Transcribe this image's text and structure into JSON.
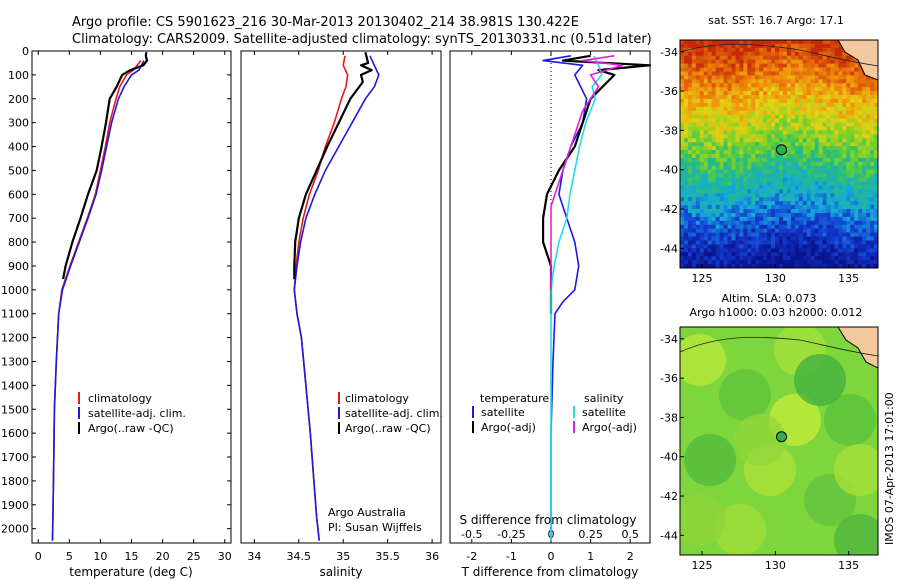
{
  "header": {
    "line1": "Argo profile: CS 5901623_216 30-Mar-2013 20130402_214 38.981S 130.422E",
    "line2": "Climatology: CARS2009. Satellite-adjusted climatology: synTS_20130331.nc (0.51d later)"
  },
  "side_label": "IMOS 07-Apr-2013 17:01:00",
  "chart_data": [
    {
      "type": "line",
      "id": "temperature",
      "xlabel": "temperature (deg C)",
      "ylabel": "",
      "xlim": [
        -1,
        31
      ],
      "ylim": [
        0,
        2060
      ],
      "xticks": [
        0,
        5,
        10,
        15,
        20,
        25,
        30
      ],
      "yticks": [
        0,
        100,
        200,
        300,
        400,
        500,
        600,
        700,
        800,
        900,
        1000,
        1100,
        1200,
        1300,
        1400,
        1500,
        1600,
        1700,
        1800,
        1900,
        2000
      ],
      "legend": [
        "climatology",
        "satellite-adj. clim.",
        "Argo(..raw -QC)"
      ],
      "series": [
        {
          "name": "climatology",
          "color": "#e41a1c",
          "x": [
            16.5,
            15.3,
            14.2,
            13.1,
            12.5,
            11.5,
            10.8,
            10.0,
            9.2,
            7.9,
            6.5,
            5.1,
            3.8,
            3.3,
            2.9,
            2.6,
            2.5,
            2.4,
            2.3
          ],
          "y": [
            40,
            80,
            100,
            150,
            200,
            300,
            400,
            500,
            600,
            700,
            800,
            900,
            1000,
            1100,
            1300,
            1500,
            1700,
            1900,
            2050
          ]
        },
        {
          "name": "satellite-adj. clim.",
          "color": "#1a1adc",
          "x": [
            17.0,
            16.2,
            15.0,
            13.8,
            12.9,
            11.8,
            11.0,
            10.2,
            9.3,
            8.0,
            6.6,
            5.2,
            3.9,
            3.3,
            2.9,
            2.6,
            2.5,
            2.4,
            2.3
          ],
          "y": [
            40,
            80,
            100,
            150,
            200,
            300,
            400,
            500,
            600,
            700,
            800,
            900,
            1000,
            1100,
            1300,
            1500,
            1700,
            1900,
            2050
          ]
        },
        {
          "name": "Argo(..raw -QC)",
          "color": "#000000",
          "x": [
            17.4,
            17.3,
            17.5,
            16.9,
            14.8,
            13.5,
            12.6,
            11.5,
            10.9,
            10.2,
            9.4,
            8.0,
            6.8,
            5.5,
            4.4,
            4.0
          ],
          "y": [
            5,
            20,
            40,
            60,
            80,
            100,
            150,
            200,
            300,
            400,
            500,
            600,
            700,
            800,
            900,
            955
          ]
        }
      ]
    },
    {
      "type": "line",
      "id": "salinity",
      "xlabel": "salinity",
      "xlim": [
        33.85,
        36.1
      ],
      "ylim": [
        0,
        2060
      ],
      "xticks": [
        34,
        34.5,
        35,
        35.5,
        36
      ],
      "legend": [
        "climatology",
        "satellite-adj. clim.",
        "Argo(..raw -QC)"
      ],
      "annotation": [
        "Argo Australia",
        "PI: Susan Wijffels"
      ],
      "series": [
        {
          "name": "climatology",
          "color": "#e41a1c",
          "x": [
            35.02,
            35.0,
            35.05,
            35.03,
            34.98,
            34.9,
            34.8,
            34.72,
            34.62,
            34.55,
            34.5,
            34.47,
            34.45,
            34.48,
            34.53,
            34.58,
            34.63,
            34.67,
            34.7,
            34.73
          ],
          "y": [
            20,
            60,
            100,
            150,
            200,
            300,
            400,
            500,
            600,
            700,
            800,
            900,
            1000,
            1100,
            1200,
            1400,
            1600,
            1800,
            1950,
            2050
          ]
        },
        {
          "name": "satellite-adj. clim.",
          "color": "#1a1adc",
          "x": [
            35.3,
            35.35,
            35.4,
            35.35,
            35.25,
            35.1,
            34.95,
            34.8,
            34.68,
            34.58,
            34.52,
            34.48,
            34.45,
            34.48,
            34.53,
            34.58,
            34.63,
            34.67,
            34.7,
            34.73
          ],
          "y": [
            20,
            60,
            100,
            150,
            200,
            300,
            400,
            500,
            600,
            700,
            800,
            900,
            1000,
            1100,
            1200,
            1400,
            1600,
            1800,
            1950,
            2050
          ]
        },
        {
          "name": "Argo(..raw -QC)",
          "color": "#000000",
          "x": [
            35.25,
            35.28,
            35.2,
            35.32,
            35.2,
            35.22,
            35.08,
            34.95,
            34.82,
            34.7,
            34.58,
            34.5,
            34.46,
            34.45,
            34.45
          ],
          "y": [
            5,
            50,
            60,
            80,
            100,
            130,
            200,
            300,
            400,
            500,
            600,
            700,
            800,
            900,
            955
          ]
        }
      ]
    },
    {
      "type": "line",
      "id": "difference",
      "xlabel": "T difference from climatology",
      "xlabel2": "S difference from climatology",
      "xlim": [
        -2.55,
        2.5
      ],
      "ylim": [
        0,
        2060
      ],
      "xticks": [
        -2,
        -1,
        0,
        1,
        2
      ],
      "xticks2": [
        -0.5,
        -0.25,
        0,
        0.25,
        0.5
      ],
      "legend_titles": [
        "temperature",
        "salinity"
      ],
      "legend": [
        "satellite",
        "Argo(-adj)",
        "satellite",
        "Argo(-adj)"
      ],
      "series": [
        {
          "name": "temperature satellite",
          "color": "#1a1adc",
          "x": [
            0.5,
            -0.2,
            0.8,
            0.6,
            0.9,
            0.8,
            0.5,
            0.3,
            0.2,
            0.4,
            0.6,
            0.7,
            0.6,
            0.3,
            0.1,
            0.05,
            0.0,
            0.0
          ],
          "y": [
            20,
            40,
            60,
            100,
            200,
            300,
            400,
            500,
            600,
            700,
            800,
            900,
            1000,
            1050,
            1100,
            1300,
            1600,
            2050
          ]
        },
        {
          "name": "temperature Argo(-adj)",
          "color": "#000000",
          "x": [
            1.0,
            0.3,
            2.5,
            1.2,
            1.6,
            1.0,
            0.8,
            0.6,
            0.2,
            -0.1,
            -0.2,
            -0.2,
            0.0,
            0.0,
            0.0
          ],
          "y": [
            20,
            40,
            60,
            80,
            100,
            200,
            300,
            400,
            500,
            600,
            700,
            800,
            900,
            1000,
            1100
          ]
        },
        {
          "name": "salinity satellite",
          "color": "#22dde8",
          "x": [
            0.27,
            0.3,
            0.32,
            0.26,
            0.28,
            0.22,
            0.18,
            0.15,
            0.12,
            0.1,
            0.05,
            0.02,
            0.0,
            0.0
          ],
          "y": [
            20,
            60,
            100,
            150,
            200,
            300,
            400,
            500,
            600,
            700,
            800,
            900,
            1000,
            2050
          ]
        },
        {
          "name": "salinity Argo(-adj)",
          "color": "#e020e0",
          "x": [
            0.4,
            0.2,
            0.45,
            0.25,
            0.3,
            0.2,
            0.15,
            0.1,
            0.05,
            0.0,
            0.0
          ],
          "y": [
            20,
            40,
            60,
            100,
            150,
            250,
            350,
            450,
            550,
            650,
            1000
          ]
        }
      ]
    },
    {
      "type": "heatmap",
      "id": "sst-map",
      "title": "sat. SST: 16.7  Argo: 17.1",
      "xticks": [
        125,
        130,
        135
      ],
      "yticks": [
        -34,
        -36,
        -38,
        -40,
        -42,
        -44
      ],
      "xlim": [
        123.5,
        137
      ],
      "ylim": [
        -45,
        -33.4
      ],
      "marker": {
        "lon": 130.422,
        "lat": -38.981
      }
    },
    {
      "type": "heatmap",
      "id": "sla-map",
      "title": "Altim. SLA: 0.073",
      "subtitle": "Argo h1000: 0.03 h2000: 0.012",
      "xticks": [
        125,
        130,
        135
      ],
      "yticks": [
        -34,
        -36,
        -38,
        -40,
        -42,
        -44
      ],
      "xlim": [
        123.5,
        137
      ],
      "ylim": [
        -45,
        -33.4
      ],
      "marker": {
        "lon": 130.422,
        "lat": -38.981
      }
    }
  ]
}
